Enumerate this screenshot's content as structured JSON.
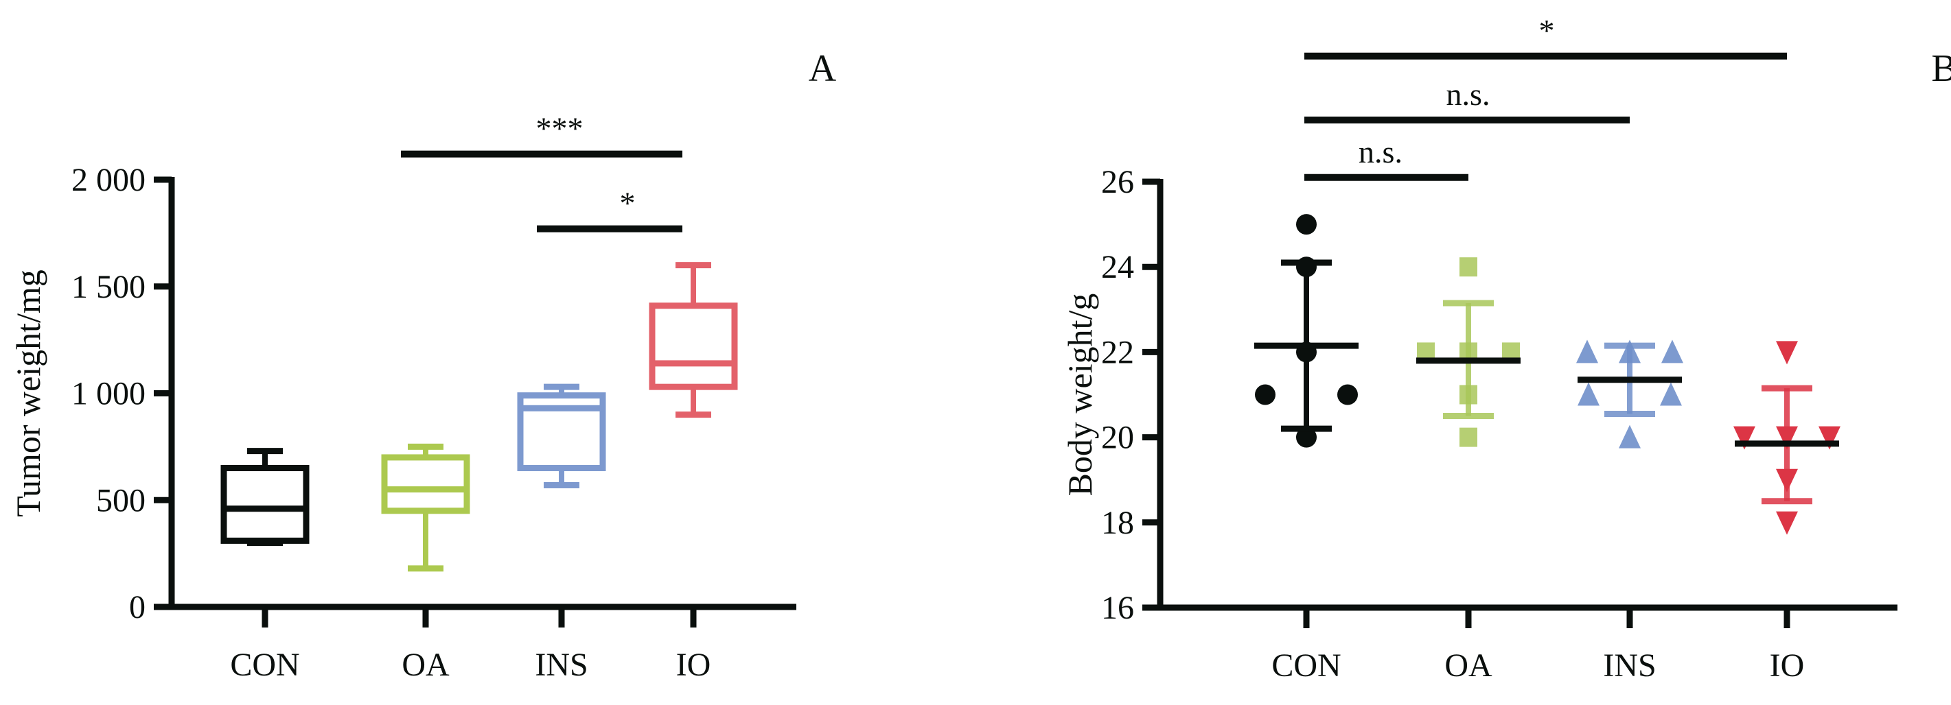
{
  "chart_data": [
    {
      "panel": "A",
      "type": "box",
      "ylabel": "Tumor weight/mg",
      "ylim": [
        0,
        2000
      ],
      "yticks": [
        0,
        500,
        1000,
        1500,
        2000
      ],
      "ytick_labels": [
        "0",
        "500",
        "1 000",
        "1 500",
        "2 000"
      ],
      "categories": [
        "CON",
        "OA",
        "INS",
        "IO"
      ],
      "colors": [
        "#0a0f0d",
        "#a4c43c",
        "#6f8fca",
        "#e0505a"
      ],
      "boxes": [
        {
          "min": 300,
          "q1": 310,
          "median": 460,
          "q3": 650,
          "max": 730
        },
        {
          "min": 180,
          "q1": 450,
          "median": 550,
          "q3": 700,
          "max": 750
        },
        {
          "min": 570,
          "q1": 650,
          "median": 930,
          "q3": 990,
          "max": 1030
        },
        {
          "min": 900,
          "q1": 1030,
          "median": 1140,
          "q3": 1410,
          "max": 1600
        }
      ],
      "significance": [
        {
          "from": 1,
          "to": 3,
          "level": 2120,
          "label": "***"
        },
        {
          "from": 2,
          "to": 3,
          "level": 1770,
          "label": "*"
        }
      ]
    },
    {
      "panel": "B",
      "type": "scatter",
      "ylabel": "Body weight/g",
      "ylim": [
        16,
        26
      ],
      "yticks": [
        16,
        18,
        20,
        22,
        24,
        26
      ],
      "ytick_labels": [
        "16",
        "18",
        "20",
        "22",
        "24",
        "26"
      ],
      "categories": [
        "CON",
        "OA",
        "INS",
        "IO"
      ],
      "colors": [
        "#0a0f0d",
        "#a9c75a",
        "#6f8fca",
        "#dc3545"
      ],
      "markers": [
        "circle",
        "square",
        "triangle-up",
        "triangle-down"
      ],
      "series": [
        {
          "name": "CON",
          "points": [
            25,
            24,
            22,
            21,
            21,
            20
          ],
          "mean": 22.15,
          "sd_upper": 24.1,
          "sd_lower": 20.2
        },
        {
          "name": "OA",
          "points": [
            24,
            22,
            22,
            22,
            21,
            20
          ],
          "mean": 21.8,
          "sd_upper": 23.15,
          "sd_lower": 20.5
        },
        {
          "name": "INS",
          "points": [
            22,
            22,
            22,
            21,
            21,
            20
          ],
          "mean": 21.35,
          "sd_upper": 22.15,
          "sd_lower": 20.55
        },
        {
          "name": "IO",
          "points": [
            22,
            20,
            20,
            20,
            19,
            18
          ],
          "mean": 19.85,
          "sd_upper": 21.15,
          "sd_lower": 18.5
        }
      ],
      "significance": [
        {
          "from": 0,
          "to": 1,
          "level": 26.1,
          "label": "n.s."
        },
        {
          "from": 0,
          "to": 2,
          "level": 27.45,
          "label": "n.s."
        },
        {
          "from": 0,
          "to": 3,
          "level": 28.95,
          "label": "*"
        }
      ]
    }
  ]
}
